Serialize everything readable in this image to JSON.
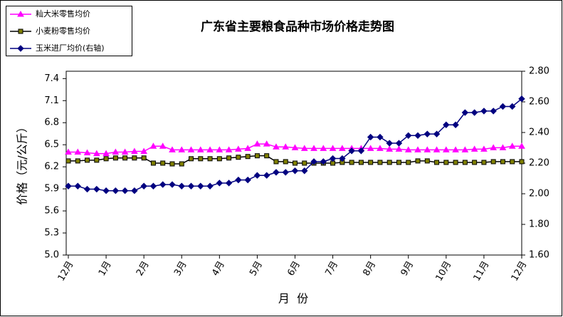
{
  "chart_data": {
    "type": "line",
    "title": "广东省主要粮食品种市场价格走势图",
    "y_label": "价格（元/公斤）",
    "x_label": "月  份",
    "legend": "top-left",
    "grid": false,
    "categories": [
      "12月",
      null,
      null,
      null,
      "1月",
      null,
      null,
      null,
      "2月",
      null,
      null,
      null,
      "3月",
      null,
      null,
      null,
      "4月",
      null,
      null,
      null,
      "5月",
      null,
      null,
      null,
      "6月",
      null,
      null,
      null,
      "7月",
      null,
      null,
      null,
      "8月",
      null,
      null,
      null,
      "9月",
      null,
      null,
      null,
      "10月",
      null,
      null,
      null,
      "11月",
      null,
      null,
      null,
      "12月"
    ],
    "ylim": [
      5.0,
      7.5
    ],
    "yticks": [
      {
        "value": 5.0,
        "label": "5.0"
      },
      5.3,
      5.6,
      5.9,
      6.2,
      6.5,
      6.8,
      7.1,
      7.4
    ],
    "y2lim": [
      1.6,
      2.8
    ],
    "y2ticks": [
      {
        "value": 1.6,
        "label": "1.60"
      },
      {
        "value": 1.8,
        "label": "1.80"
      },
      {
        "value": 2.0,
        "label": "2.00"
      },
      {
        "value": 2.2,
        "label": "2.20"
      },
      {
        "value": 2.4,
        "label": "2.40"
      },
      {
        "value": 2.6,
        "label": "2.60"
      },
      {
        "value": 2.8,
        "label": "2.80"
      }
    ],
    "series": [
      {
        "name": "籼大米零售均价",
        "color": "#ff00ff",
        "marker": "triangle",
        "values": [
          6.4,
          6.4,
          6.39,
          6.38,
          6.38,
          6.4,
          6.4,
          6.41,
          6.41,
          6.48,
          6.48,
          6.43,
          6.43,
          6.43,
          6.43,
          6.43,
          6.43,
          6.43,
          6.44,
          6.45,
          6.51,
          6.51,
          6.47,
          6.47,
          6.46,
          6.45,
          6.45,
          6.45,
          6.45,
          6.45,
          6.45,
          6.45,
          6.45,
          6.45,
          6.44,
          6.44,
          6.43,
          6.43,
          6.43,
          6.43,
          6.43,
          6.43,
          6.43,
          6.44,
          6.44,
          6.46,
          6.46,
          6.48,
          6.48
        ]
      },
      {
        "name": "小麦粉零售均价",
        "color": "#000000",
        "marker": "square",
        "values": [
          6.28,
          6.28,
          6.29,
          6.29,
          6.31,
          6.32,
          6.32,
          6.32,
          6.32,
          6.25,
          6.25,
          6.24,
          6.24,
          6.31,
          6.31,
          6.31,
          6.31,
          6.32,
          6.33,
          6.34,
          6.35,
          6.35,
          6.27,
          6.27,
          6.25,
          6.25,
          6.25,
          6.25,
          6.25,
          6.26,
          6.26,
          6.26,
          6.26,
          6.26,
          6.26,
          6.26,
          6.26,
          6.28,
          6.28,
          6.26,
          6.26,
          6.26,
          6.26,
          6.26,
          6.26,
          6.27,
          6.27,
          6.27,
          6.27
        ]
      },
      {
        "name": "玉米进厂均价(右轴)",
        "color": "#000080",
        "marker": "diamond",
        "axis": "y2",
        "values": [
          2.05,
          2.05,
          2.03,
          2.03,
          2.02,
          2.02,
          2.02,
          2.02,
          2.05,
          2.05,
          2.06,
          2.06,
          2.05,
          2.05,
          2.05,
          2.05,
          2.07,
          2.07,
          2.09,
          2.09,
          2.12,
          2.12,
          2.14,
          2.14,
          2.15,
          2.15,
          2.21,
          2.21,
          2.23,
          2.23,
          2.28,
          2.28,
          2.37,
          2.37,
          2.33,
          2.33,
          2.38,
          2.38,
          2.39,
          2.39,
          2.45,
          2.45,
          2.53,
          2.53,
          2.54,
          2.54,
          2.57,
          2.57,
          2.62
        ]
      }
    ]
  }
}
